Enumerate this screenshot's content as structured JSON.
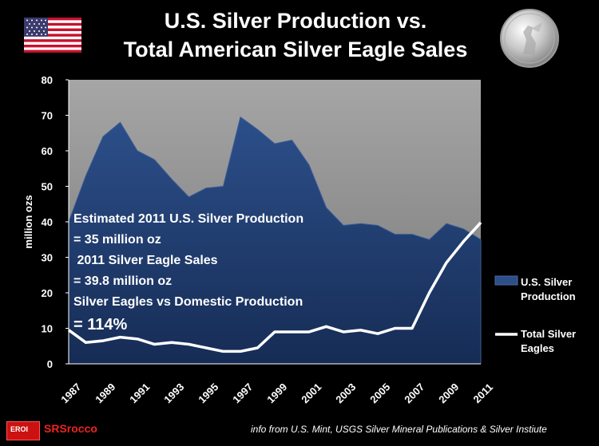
{
  "title": {
    "line1": "U.S. Silver Production vs.",
    "line2": "Total American Silver Eagle Sales"
  },
  "annotation": {
    "lines": [
      "Estimated 2011 U.S. Silver Production",
      "= 35 million oz",
      " 2011 Silver Eagle Sales",
      "= 39.8 million oz",
      "Silver Eagles vs Domestic Production",
      "= 114%"
    ]
  },
  "footer": {
    "source": "info from U.S. Mint, USGS Silver Mineral Publications & Silver Instiute",
    "logo_badge": "EROI",
    "logo_text": "SRSrocco"
  },
  "icons": {
    "flag": "us-flag-icon",
    "coin": "silver-eagle-coin-icon"
  },
  "colors": {
    "production_fill": "#1f3a6b",
    "production_fill_light": "#2c4f8a",
    "eagles_line": "#ffffff",
    "background": "#000000",
    "plot_bg": "#909090"
  },
  "chart_data": {
    "type": "area",
    "ylabel": "million ozs",
    "xlabel": "",
    "ylim": [
      0,
      80
    ],
    "yticks": [
      0,
      10,
      20,
      30,
      40,
      50,
      60,
      70,
      80
    ],
    "x": [
      1987,
      1988,
      1989,
      1990,
      1991,
      1992,
      1993,
      1994,
      1995,
      1996,
      1997,
      1998,
      1999,
      2000,
      2001,
      2002,
      2003,
      2004,
      2005,
      2006,
      2007,
      2008,
      2009,
      2010,
      2011
    ],
    "xticks": [
      "1987",
      "1989",
      "1991",
      "1993",
      "1995",
      "1997",
      "1999",
      "2001",
      "2003",
      "2005",
      "2007",
      "2009",
      "2011"
    ],
    "grid": false,
    "legend": "right",
    "series": [
      {
        "name": "U.S. Silver Production",
        "type": "area",
        "values": [
          40,
          53,
          64,
          68,
          60,
          57.5,
          52,
          47,
          49.5,
          50,
          69.5,
          66,
          62,
          63,
          56,
          44,
          39,
          39.5,
          39,
          36.5,
          36.5,
          35,
          39.5,
          38,
          35
        ]
      },
      {
        "name": "Total Silver Eagles",
        "type": "line",
        "values": [
          9.5,
          6,
          6.5,
          7.5,
          7,
          5.5,
          6,
          5.5,
          4.5,
          3.5,
          3.5,
          4.5,
          9,
          9,
          9,
          10.5,
          9,
          9.5,
          8.5,
          10,
          10,
          20,
          28.5,
          34.5,
          39.8
        ]
      }
    ]
  }
}
